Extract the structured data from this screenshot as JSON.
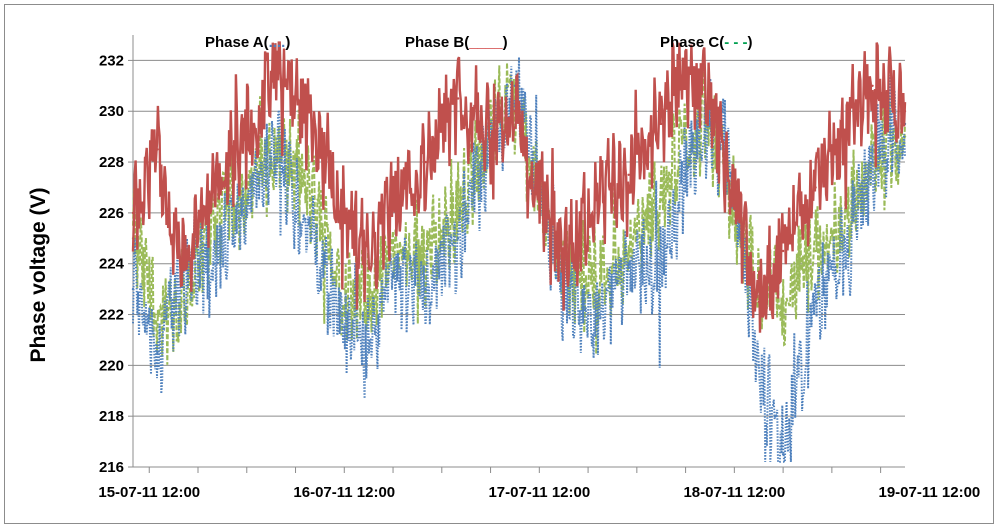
{
  "chart_data": {
    "type": "line",
    "title": "",
    "xlabel": "",
    "ylabel": "Phase voltage (V)",
    "ylim": [
      216,
      233
    ],
    "yticks": [
      216,
      218,
      220,
      222,
      224,
      226,
      228,
      230,
      232
    ],
    "xlim": [
      "15-07-11 10:00",
      "19-07-11 09:00"
    ],
    "xtick_labels": [
      "15-07-11 12:00",
      "16-07-11 12:00",
      "17-07-11 12:00",
      "18-07-11 12:00",
      "19-07-11 12:00"
    ],
    "grid": "horizontal",
    "legend": {
      "position": "top",
      "entries": [
        {
          "prefix": "Phase A(",
          "marker": "....",
          "suffix": ")"
        },
        {
          "prefix": "Phase  B(",
          "marker": "____",
          "suffix": ")"
        },
        {
          "prefix": "Phase C(",
          "marker": "- - -",
          "suffix": ")"
        }
      ]
    },
    "series": [
      {
        "color": "#4f81bd",
        "style": "dotted",
        "x": [
          "15-07-11 10:00",
          "15-07-11 13:00",
          "15-07-11 16:00",
          "15-07-11 20:00",
          "16-07-11 00:00",
          "16-07-11 04:00",
          "16-07-11 08:00",
          "16-07-11 12:00",
          "16-07-11 15:00",
          "16-07-11 18:00",
          "16-07-11 22:00",
          "17-07-11 02:00",
          "17-07-11 06:00",
          "17-07-11 09:00",
          "17-07-11 12:00",
          "17-07-11 15:00",
          "17-07-11 19:00",
          "17-07-11 23:00",
          "18-07-11 03:00",
          "18-07-11 06:00",
          "18-07-11 09:00",
          "18-07-11 12:00",
          "18-07-11 15:00",
          "18-07-11 18:00",
          "18-07-11 22:00",
          "19-07-11 02:00",
          "19-07-11 05:00",
          "19-07-11 09:00"
        ],
        "values": [
          223.0,
          220.5,
          223.5,
          224.0,
          226.5,
          228.0,
          225.0,
          221.5,
          220.5,
          223.5,
          223.0,
          225.0,
          228.5,
          231.0,
          227.0,
          223.0,
          222.0,
          224.0,
          224.0,
          227.5,
          229.5,
          227.0,
          220.0,
          216.5,
          222.5,
          224.5,
          228.0,
          229.5
        ]
      },
      {
        "color": "#c0504d",
        "style": "solid",
        "x": [
          "15-07-11 10:00",
          "15-07-11 13:00",
          "15-07-11 16:00",
          "15-07-11 20:00",
          "16-07-11 00:00",
          "16-07-11 04:00",
          "16-07-11 08:00",
          "16-07-11 12:00",
          "16-07-11 15:00",
          "16-07-11 18:00",
          "16-07-11 22:00",
          "17-07-11 02:00",
          "17-07-11 06:00",
          "17-07-11 09:00",
          "17-07-11 12:00",
          "17-07-11 15:00",
          "17-07-11 19:00",
          "17-07-11 23:00",
          "18-07-11 03:00",
          "18-07-11 06:00",
          "18-07-11 09:00",
          "18-07-11 12:00",
          "18-07-11 15:00",
          "18-07-11 18:00",
          "18-07-11 22:00",
          "19-07-11 02:00",
          "19-07-11 05:00",
          "19-07-11 09:00"
        ],
        "values": [
          226.0,
          228.5,
          224.0,
          226.5,
          229.5,
          231.5,
          229.0,
          226.0,
          224.0,
          226.5,
          228.0,
          230.5,
          229.5,
          230.0,
          226.5,
          224.0,
          226.5,
          227.5,
          229.5,
          231.5,
          230.5,
          226.5,
          222.5,
          224.5,
          227.0,
          229.5,
          231.0,
          230.0
        ]
      },
      {
        "color": "#9bbb59",
        "style": "dashed",
        "x": [
          "15-07-11 10:00",
          "15-07-11 13:00",
          "15-07-11 16:00",
          "15-07-11 20:00",
          "16-07-11 00:00",
          "16-07-11 04:00",
          "16-07-11 08:00",
          "16-07-11 12:00",
          "16-07-11 15:00",
          "16-07-11 18:00",
          "16-07-11 22:00",
          "17-07-11 02:00",
          "17-07-11 06:00",
          "17-07-11 09:00",
          "17-07-11 12:00",
          "17-07-11 15:00",
          "17-07-11 19:00",
          "17-07-11 23:00",
          "18-07-11 03:00",
          "18-07-11 06:00",
          "18-07-11 09:00",
          "18-07-11 12:00",
          "18-07-11 15:00",
          "18-07-11 18:00",
          "18-07-11 22:00",
          "19-07-11 02:00",
          "19-07-11 05:00",
          "19-07-11 09:00"
        ],
        "values": [
          225.0,
          222.0,
          222.5,
          225.5,
          227.0,
          228.5,
          226.5,
          223.0,
          222.5,
          224.5,
          224.5,
          226.0,
          229.5,
          230.5,
          226.5,
          224.0,
          223.5,
          224.5,
          226.5,
          229.0,
          229.5,
          226.0,
          223.0,
          222.5,
          224.5,
          226.0,
          228.0,
          229.0
        ]
      }
    ]
  }
}
